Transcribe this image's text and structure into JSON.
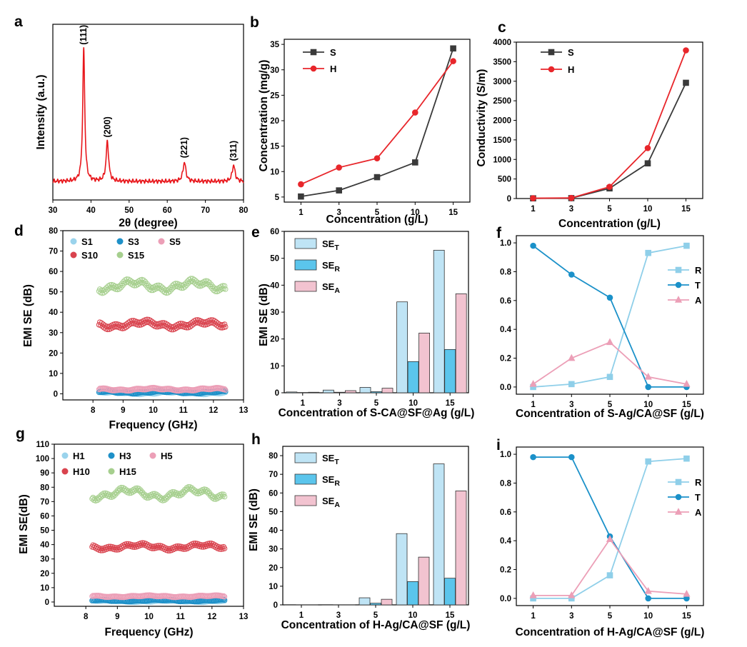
{
  "chart_data": [
    {
      "panel": "a",
      "type": "line",
      "xlabel": "2θ (degree)",
      "ylabel": "Intensity (a.u.)",
      "xlim": [
        30,
        80
      ],
      "xticks": [
        30,
        40,
        50,
        60,
        70,
        80
      ],
      "color": "#e8161b",
      "peaks": [
        {
          "x": 38.1,
          "height": 0.9,
          "width": 0.32,
          "label": "(111)"
        },
        {
          "x": 44.3,
          "height": 0.27,
          "width": 0.4,
          "label": "(200)"
        },
        {
          "x": 64.5,
          "height": 0.13,
          "width": 0.45,
          "label": "(221)"
        },
        {
          "x": 77.4,
          "height": 0.11,
          "width": 0.45,
          "label": "(311)"
        }
      ]
    },
    {
      "panel": "b",
      "type": "line",
      "xlabel": "Concentration (g/L)",
      "ylabel": "Concentration (mg/g)",
      "categories": [
        "1",
        "3",
        "5",
        "10",
        "15"
      ],
      "ylim": [
        4,
        36
      ],
      "yticks": [
        5,
        10,
        15,
        20,
        25,
        30,
        35
      ],
      "series": [
        {
          "name": "S",
          "color": "#3a3a3a",
          "marker": "square",
          "values": [
            5.1,
            6.3,
            8.9,
            11.8,
            34.2
          ]
        },
        {
          "name": "H",
          "color": "#e8262b",
          "marker": "circle",
          "values": [
            7.5,
            10.8,
            12.6,
            21.6,
            31.7
          ]
        }
      ]
    },
    {
      "panel": "c",
      "type": "line",
      "xlabel": "Concentration (g/L)",
      "ylabel": "Conductivity (S/m)",
      "categories": [
        "1",
        "3",
        "5",
        "10",
        "15"
      ],
      "ylim": [
        0,
        4000
      ],
      "yticks": [
        0,
        500,
        1000,
        1500,
        2000,
        2500,
        3000,
        3500,
        4000
      ],
      "series": [
        {
          "name": "S",
          "color": "#3a3a3a",
          "marker": "square",
          "values": [
            5,
            10,
            260,
            900,
            2960
          ]
        },
        {
          "name": "H",
          "color": "#e8262b",
          "marker": "circle",
          "values": [
            8,
            15,
            300,
            1290,
            3790
          ]
        }
      ]
    },
    {
      "panel": "d",
      "type": "scatter",
      "xlabel": "Frequency (GHz)",
      "ylabel": "EMI SE (dB)",
      "xlim": [
        7,
        13
      ],
      "xticks": [
        8,
        9,
        10,
        11,
        12,
        13
      ],
      "ylim": [
        -3,
        80
      ],
      "yticks": [
        0,
        10,
        20,
        30,
        40,
        50,
        60,
        70,
        80
      ],
      "freq_range": [
        8.2,
        12.4
      ],
      "series": [
        {
          "name": "S1",
          "color": "#9ad3ec",
          "base": 0.5
        },
        {
          "name": "S3",
          "color": "#1e90c8",
          "base": 0.8
        },
        {
          "name": "S5",
          "color": "#ec9fb7",
          "base": 2.2
        },
        {
          "name": "S10",
          "color": "#d9434e",
          "base": 34
        },
        {
          "name": "S15",
          "color": "#a6cf8e",
          "base": 53
        }
      ]
    },
    {
      "panel": "e",
      "type": "bar",
      "xlabel": "Concentration of S-CA@SF@Ag (g/L)",
      "ylabel": "EMI SE (dB)",
      "categories": [
        "1",
        "3",
        "5",
        "10",
        "15"
      ],
      "ylim": [
        0,
        60
      ],
      "yticks": [
        0,
        10,
        20,
        30,
        40,
        50,
        60
      ],
      "series": [
        {
          "name": "SE",
          "sub": "T",
          "color": "#bfe4f5",
          "values": [
            0.3,
            1.0,
            2.0,
            33.8,
            53.0
          ]
        },
        {
          "name": "SE",
          "sub": "R",
          "color": "#5bc5ec",
          "values": [
            0.1,
            0.2,
            0.4,
            11.6,
            16.1
          ]
        },
        {
          "name": "SE",
          "sub": "A",
          "color": "#f2c3d0",
          "values": [
            0.2,
            0.8,
            1.7,
            22.2,
            36.8
          ]
        }
      ]
    },
    {
      "panel": "f",
      "type": "line",
      "xlabel": "Concentration of S-Ag/CA@SF (g/L)",
      "ylabel": "",
      "categories": [
        "1",
        "3",
        "5",
        "10",
        "15"
      ],
      "ylim": [
        -0.05,
        1.05
      ],
      "yticks": [
        "0.0",
        "0.2",
        "0.4",
        "0.6",
        "0.8",
        "1.0"
      ],
      "series": [
        {
          "name": "R",
          "color": "#8fcfe9",
          "marker": "square",
          "values": [
            0.0,
            0.02,
            0.07,
            0.93,
            0.98
          ]
        },
        {
          "name": "T",
          "color": "#1b91c9",
          "marker": "circle",
          "values": [
            0.98,
            0.78,
            0.62,
            0.0,
            0.0
          ]
        },
        {
          "name": "A",
          "color": "#ec9fb7",
          "marker": "triangle",
          "values": [
            0.02,
            0.2,
            0.31,
            0.07,
            0.02
          ]
        }
      ]
    },
    {
      "panel": "g",
      "type": "scatter",
      "xlabel": "Frequency (GHz)",
      "ylabel": "EMI SE(dB)",
      "xlim": [
        7,
        13
      ],
      "xticks": [
        8,
        9,
        10,
        11,
        12,
        13
      ],
      "ylim": [
        -3,
        110
      ],
      "yticks": [
        0,
        10,
        20,
        30,
        40,
        50,
        60,
        70,
        80,
        90,
        100,
        110
      ],
      "freq_range": [
        8.2,
        12.4
      ],
      "series": [
        {
          "name": "H1",
          "color": "#9ad3ec",
          "base": 0.6
        },
        {
          "name": "H3",
          "color": "#1e90c8",
          "base": 1.0
        },
        {
          "name": "H5",
          "color": "#ec9fb7",
          "base": 4.0
        },
        {
          "name": "H10",
          "color": "#d9434e",
          "base": 38.5
        },
        {
          "name": "H15",
          "color": "#a6cf8e",
          "base": 75.5
        }
      ]
    },
    {
      "panel": "h",
      "type": "bar",
      "xlabel": "Concentration of H-Ag/CA@SF (g/L)",
      "ylabel": "EMI SE (dB)",
      "categories": [
        "1",
        "3",
        "5",
        "10",
        "15"
      ],
      "ylim": [
        0,
        85
      ],
      "yticks": [
        0,
        10,
        20,
        30,
        40,
        50,
        60,
        70,
        80
      ],
      "series": [
        {
          "name": "SE",
          "sub": "T",
          "color": "#bfe4f5",
          "values": [
            0.1,
            0.1,
            3.8,
            38.2,
            75.6
          ]
        },
        {
          "name": "SE",
          "sub": "R",
          "color": "#5bc5ec",
          "values": [
            0.05,
            0.05,
            0.9,
            12.5,
            14.3
          ]
        },
        {
          "name": "SE",
          "sub": "A",
          "color": "#f2c3d0",
          "values": [
            0.05,
            0.05,
            3.0,
            25.6,
            61.1
          ]
        }
      ]
    },
    {
      "panel": "i",
      "type": "line",
      "xlabel": "Concentration of H-Ag/CA@SF (g/L)",
      "ylabel": "",
      "categories": [
        "1",
        "3",
        "5",
        "10",
        "15"
      ],
      "ylim": [
        -0.05,
        1.05
      ],
      "yticks": [
        "0.0",
        "0.2",
        "0.4",
        "0.6",
        "0.8",
        "1.0"
      ],
      "series": [
        {
          "name": "R",
          "color": "#8fcfe9",
          "marker": "square",
          "values": [
            0.0,
            0.0,
            0.16,
            0.95,
            0.97
          ]
        },
        {
          "name": "T",
          "color": "#1b91c9",
          "marker": "circle",
          "values": [
            0.98,
            0.98,
            0.43,
            0.0,
            0.0
          ]
        },
        {
          "name": "A",
          "color": "#ec9fb7",
          "marker": "triangle",
          "values": [
            0.02,
            0.02,
            0.41,
            0.05,
            0.03
          ]
        }
      ]
    }
  ]
}
